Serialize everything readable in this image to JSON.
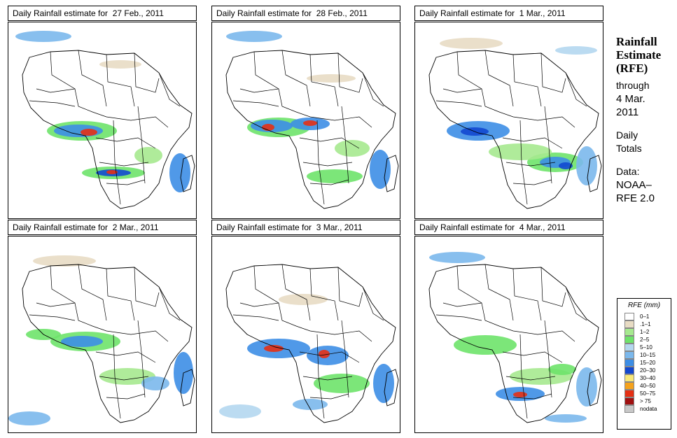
{
  "panels": [
    {
      "title": "Daily Rainfall estimate for  27 Feb., 2011"
    },
    {
      "title": "Daily Rainfall estimate for  28 Feb., 2011"
    },
    {
      "title": "Daily Rainfall estimate for  1 Mar., 2011"
    },
    {
      "title": "Daily Rainfall estimate for  2 Mar., 2011"
    },
    {
      "title": "Daily Rainfall estimate for  3 Mar., 2011"
    },
    {
      "title": "Daily Rainfall estimate for  4 Mar., 2011"
    }
  ],
  "sidebar": {
    "title1": "Rainfall",
    "title2": "Estimate",
    "title3": "(RFE)",
    "through": "through",
    "date1": "4 Mar.",
    "date2": "2011",
    "daily1": "Daily",
    "daily2": "Totals",
    "data1": "Data:",
    "data2": "NOAA–",
    "data3": "RFE 2.0"
  },
  "legend": {
    "title": "RFE (mm)",
    "items": [
      {
        "label": "0–1",
        "color": "#ffffff"
      },
      {
        "label": ".1–1",
        "color": "#e8dcc4"
      },
      {
        "label": "1–2",
        "color": "#a6e98f"
      },
      {
        "label": "2–5",
        "color": "#6ee36a"
      },
      {
        "label": "5–10",
        "color": "#b4d7ef"
      },
      {
        "label": "10–15",
        "color": "#7bb8ec"
      },
      {
        "label": "15–20",
        "color": "#3d8ee6"
      },
      {
        "label": "20–30",
        "color": "#1248d0"
      },
      {
        "label": "30–40",
        "color": "#f8e878"
      },
      {
        "label": "40–50",
        "color": "#f5a21c"
      },
      {
        "label": "50–75",
        "color": "#e53014"
      },
      {
        "label": "> 75",
        "color": "#a01010"
      },
      {
        "label": "nodata",
        "color": "#c8c8c8"
      }
    ]
  }
}
